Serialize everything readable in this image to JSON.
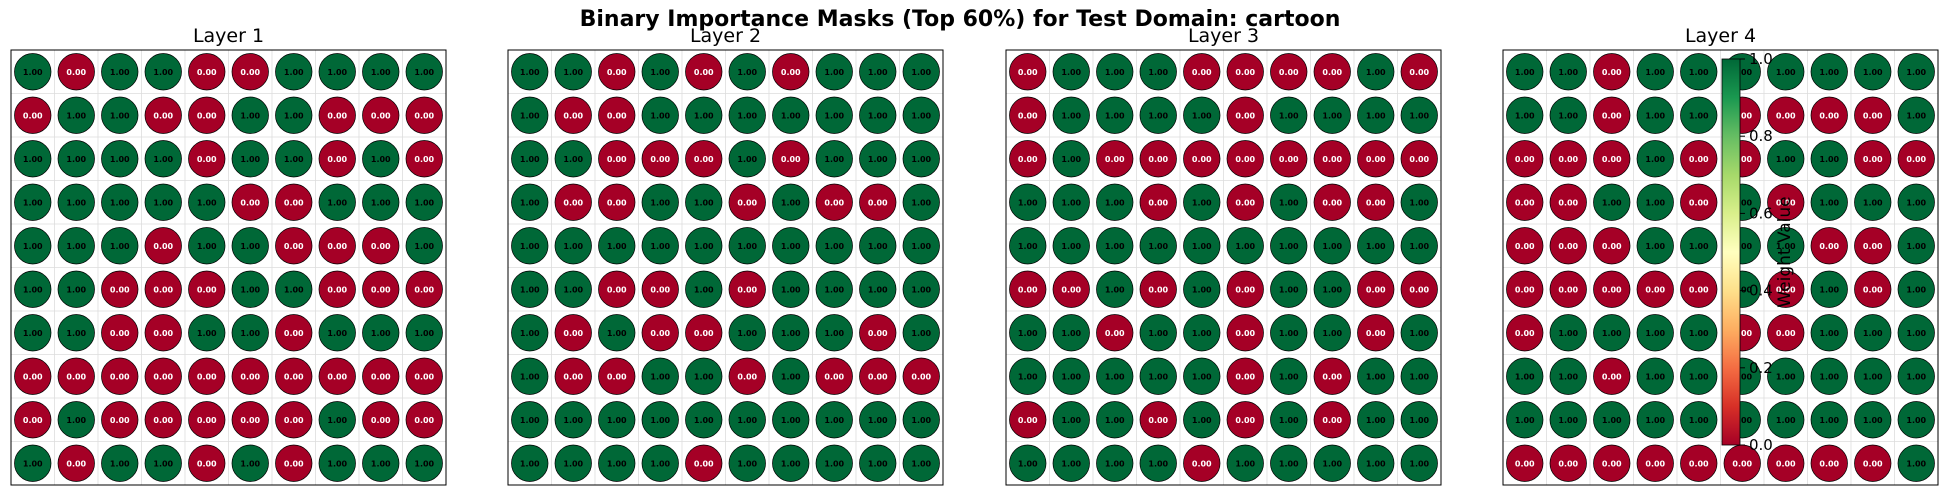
{
  "chart_data": {
    "type": "heatmap",
    "title": "Binary Importance Masks (Top 60%) for Test Domain: cartoon",
    "rows": 10,
    "cols": 10,
    "value_format": "2 decimals",
    "colormap": "RdYlGn",
    "colorbar": {
      "label": "Weight Value",
      "range": [
        0.0,
        1.0
      ],
      "ticks": [
        "0.0",
        "0.2",
        "0.4",
        "0.6",
        "0.8",
        "1.0"
      ]
    },
    "grid": true,
    "panels": [
      {
        "title": "Layer 1",
        "mask": [
          [
            1,
            0,
            1,
            1,
            0,
            0,
            1,
            1,
            1,
            1
          ],
          [
            0,
            1,
            1,
            0,
            0,
            1,
            1,
            0,
            0,
            0
          ],
          [
            1,
            1,
            1,
            1,
            0,
            1,
            1,
            0,
            1,
            0
          ],
          [
            1,
            1,
            1,
            1,
            1,
            0,
            0,
            1,
            1,
            1
          ],
          [
            1,
            1,
            1,
            0,
            1,
            1,
            0,
            0,
            0,
            1
          ],
          [
            1,
            1,
            0,
            0,
            0,
            1,
            1,
            0,
            0,
            0
          ],
          [
            1,
            1,
            0,
            0,
            1,
            1,
            0,
            1,
            1,
            1
          ],
          [
            0,
            0,
            0,
            0,
            0,
            0,
            0,
            0,
            0,
            0
          ],
          [
            0,
            1,
            0,
            0,
            0,
            0,
            0,
            1,
            0,
            0
          ],
          [
            1,
            0,
            1,
            1,
            0,
            1,
            0,
            1,
            1,
            1
          ]
        ]
      },
      {
        "title": "Layer 2",
        "mask": [
          [
            1,
            1,
            0,
            1,
            0,
            1,
            0,
            1,
            1,
            1
          ],
          [
            1,
            0,
            0,
            1,
            1,
            1,
            1,
            1,
            1,
            1
          ],
          [
            1,
            1,
            0,
            0,
            0,
            1,
            0,
            1,
            1,
            1
          ],
          [
            1,
            0,
            0,
            1,
            1,
            0,
            1,
            0,
            0,
            1
          ],
          [
            1,
            1,
            1,
            1,
            1,
            1,
            1,
            1,
            1,
            1
          ],
          [
            1,
            1,
            0,
            0,
            1,
            0,
            1,
            1,
            1,
            1
          ],
          [
            1,
            0,
            1,
            0,
            0,
            1,
            1,
            1,
            0,
            1
          ],
          [
            1,
            0,
            0,
            1,
            1,
            0,
            1,
            0,
            0,
            0
          ],
          [
            1,
            1,
            1,
            1,
            1,
            1,
            1,
            1,
            1,
            1
          ],
          [
            1,
            1,
            1,
            1,
            0,
            1,
            1,
            1,
            1,
            1
          ]
        ]
      },
      {
        "title": "Layer 3",
        "mask": [
          [
            0,
            1,
            1,
            1,
            0,
            0,
            0,
            0,
            1,
            0
          ],
          [
            0,
            1,
            1,
            1,
            1,
            0,
            1,
            1,
            1,
            1
          ],
          [
            0,
            1,
            0,
            0,
            0,
            0,
            0,
            0,
            0,
            0
          ],
          [
            1,
            1,
            1,
            0,
            1,
            0,
            1,
            0,
            0,
            1
          ],
          [
            1,
            1,
            1,
            1,
            1,
            1,
            1,
            1,
            1,
            1
          ],
          [
            0,
            0,
            1,
            0,
            1,
            0,
            1,
            1,
            0,
            0
          ],
          [
            1,
            1,
            0,
            1,
            1,
            0,
            1,
            1,
            0,
            1
          ],
          [
            1,
            1,
            1,
            1,
            1,
            0,
            1,
            0,
            1,
            1
          ],
          [
            0,
            1,
            1,
            0,
            1,
            0,
            1,
            0,
            1,
            1
          ],
          [
            1,
            1,
            1,
            1,
            0,
            1,
            1,
            1,
            1,
            1
          ]
        ]
      },
      {
        "title": "Layer 4",
        "mask": [
          [
            1,
            1,
            0,
            1,
            1,
            1,
            1,
            1,
            1,
            1
          ],
          [
            1,
            1,
            0,
            1,
            1,
            0,
            0,
            0,
            0,
            1
          ],
          [
            0,
            0,
            0,
            1,
            0,
            0,
            1,
            1,
            0,
            0
          ],
          [
            0,
            0,
            1,
            1,
            0,
            1,
            0,
            1,
            1,
            1
          ],
          [
            0,
            0,
            0,
            1,
            1,
            1,
            1,
            0,
            0,
            1
          ],
          [
            0,
            0,
            0,
            0,
            0,
            1,
            0,
            1,
            0,
            1
          ],
          [
            0,
            1,
            1,
            1,
            1,
            0,
            0,
            1,
            1,
            1
          ],
          [
            1,
            1,
            0,
            1,
            1,
            1,
            1,
            1,
            1,
            1
          ],
          [
            1,
            1,
            1,
            1,
            1,
            1,
            1,
            1,
            1,
            1
          ],
          [
            0,
            0,
            0,
            0,
            0,
            0,
            0,
            0,
            0,
            1
          ]
        ]
      }
    ]
  }
}
